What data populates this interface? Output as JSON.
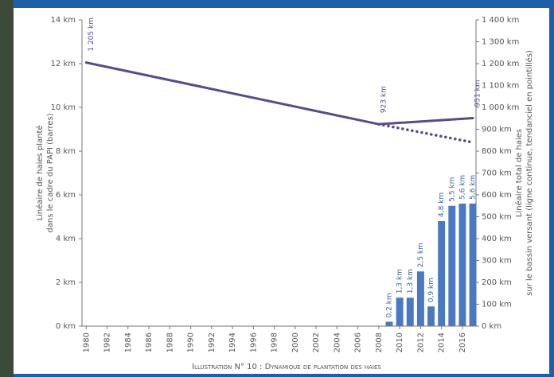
{
  "chart_data": {
    "type": "combo",
    "ylabel": [
      "Linéaire de haies planté",
      "dans le cadre du PAPI (barres)"
    ],
    "y2label": [
      "Linéaire total de haies",
      "sur le bassin versant (ligne continue, tendanciel en pointillés)"
    ],
    "caption": "Illustration N° 10 : Dynamique de plantation des haies",
    "xlim": [
      1979.6,
      2017.3
    ],
    "xticks": [
      1980,
      1982,
      1984,
      1986,
      1988,
      1990,
      1992,
      1994,
      1996,
      1998,
      2000,
      2002,
      2004,
      2006,
      2008,
      2010,
      2012,
      2014,
      2016
    ],
    "ylim": [
      0,
      14
    ],
    "yticks": [
      {
        "value": 0,
        "label": "0 km"
      },
      {
        "value": 2,
        "label": "2 km"
      },
      {
        "value": 4,
        "label": "4 km"
      },
      {
        "value": 6,
        "label": "6 km"
      },
      {
        "value": 8,
        "label": "8 km"
      },
      {
        "value": 10,
        "label": "10 km"
      },
      {
        "value": 12,
        "label": "12 km"
      },
      {
        "value": 14,
        "label": "14 km"
      }
    ],
    "y2lim": [
      0,
      1400
    ],
    "y2ticks": [
      {
        "value": 0,
        "label": "0 km"
      },
      {
        "value": 100,
        "label": "100 km"
      },
      {
        "value": 200,
        "label": "200 km"
      },
      {
        "value": 300,
        "label": "300 km"
      },
      {
        "value": 400,
        "label": "400 km"
      },
      {
        "value": 500,
        "label": "500 km"
      },
      {
        "value": 600,
        "label": "600 km"
      },
      {
        "value": 700,
        "label": "700 km"
      },
      {
        "value": 800,
        "label": "800 km"
      },
      {
        "value": 900,
        "label": "900 km"
      },
      {
        "value": 1000,
        "label": "1 000 km"
      },
      {
        "value": 1100,
        "label": "1 100 km"
      },
      {
        "value": 1200,
        "label": "1 200 km"
      },
      {
        "value": 1300,
        "label": "1 300 km"
      },
      {
        "value": 1400,
        "label": "1 400 km"
      }
    ],
    "series": [
      {
        "type": "bar",
        "color": "#4a78c2",
        "x": [
          2009,
          2010,
          2011,
          2012,
          2013,
          2014,
          2015,
          2016,
          2017
        ],
        "values": [
          0.2,
          1.3,
          1.3,
          2.5,
          0.9,
          4.8,
          5.5,
          5.6,
          5.6
        ],
        "value_labels": [
          "0,2 km",
          "1,3 km",
          "1,3 km",
          "2,5 km",
          "0,9 km",
          "4,8 km",
          "5,5 km",
          "5,6 km",
          "5,6 km"
        ]
      },
      {
        "type": "line",
        "axis": "y2",
        "color": "#5b4a8a",
        "dashed": false,
        "x": [
          1980,
          2008,
          2017
        ],
        "values": [
          1205,
          923,
          951
        ],
        "value_labels": [
          "1 205 km",
          "923 km",
          "951 km"
        ]
      },
      {
        "type": "line",
        "axis": "y2",
        "color": "#5b4a8a",
        "dashed": true,
        "x": [
          2008,
          2017
        ],
        "values": [
          923,
          840
        ]
      }
    ]
  }
}
